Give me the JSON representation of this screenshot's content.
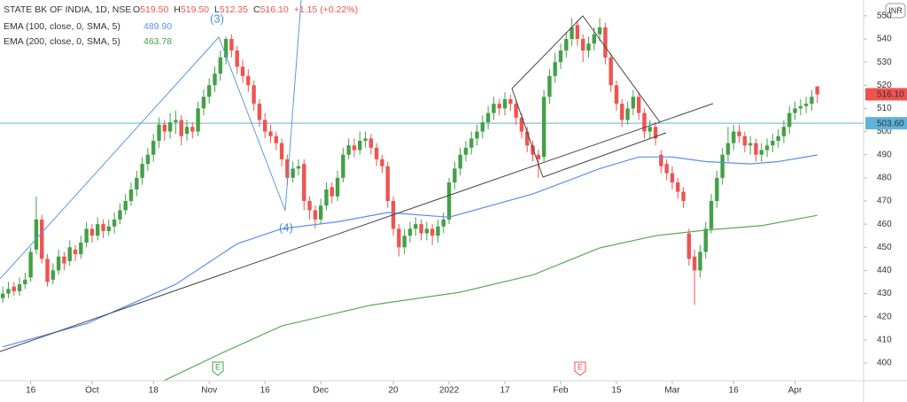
{
  "chart_data": {
    "type": "candlestick",
    "legend": {
      "symbol": "STATE BK OF INDIA, 1D, NSE",
      "ohlc": [
        {
          "key": "O",
          "value": "519.50"
        },
        {
          "key": "H",
          "value": "519.50"
        },
        {
          "key": "L",
          "value": "512.35"
        },
        {
          "key": "C",
          "value": "516.10"
        }
      ],
      "change": "+1.15 (+0.22%)"
    },
    "open": [
      428,
      430,
      433,
      431,
      434,
      437,
      449,
      462,
      445,
      436,
      440,
      446,
      444,
      449,
      447,
      452,
      458,
      455,
      460,
      457,
      459,
      462,
      466,
      470,
      475,
      480,
      486,
      490,
      496,
      503,
      500,
      504,
      505,
      499,
      502,
      500,
      510,
      515,
      520,
      525,
      532,
      540,
      535,
      528,
      524,
      520,
      512,
      505,
      500,
      498,
      495,
      488,
      480,
      484,
      486,
      470,
      466,
      462,
      468,
      476,
      472,
      480,
      490,
      494,
      492,
      496,
      497,
      493,
      488,
      485,
      470,
      458,
      450,
      455,
      458,
      460,
      456,
      458,
      455,
      459,
      462,
      478,
      484,
      490,
      493,
      497,
      500,
      504,
      508,
      512,
      510,
      514,
      512,
      506,
      500,
      494,
      490,
      489,
      515,
      524,
      530,
      535,
      540,
      546,
      540,
      535,
      538,
      542,
      545,
      532,
      520,
      512,
      505,
      510,
      515,
      508,
      500,
      502,
      490,
      486,
      482,
      478,
      474,
      456,
      446,
      440,
      448,
      458,
      470,
      480,
      490,
      495,
      500,
      498,
      494,
      495,
      490,
      492,
      494,
      496,
      498,
      502,
      508,
      510,
      511,
      512,
      519.5
    ],
    "high": [
      433,
      435,
      435,
      437,
      439,
      450,
      472,
      464,
      447,
      443,
      449,
      448,
      453,
      451,
      455,
      461,
      460,
      463,
      462,
      462,
      465,
      469,
      473,
      478,
      483,
      489,
      493,
      499,
      506,
      505,
      508,
      509,
      507,
      505,
      504,
      513,
      518,
      523,
      528,
      535,
      541,
      542,
      537,
      531,
      527,
      522,
      514,
      508,
      503,
      500,
      497,
      490,
      487,
      488,
      488,
      472,
      468,
      471,
      478,
      478,
      483,
      493,
      497,
      497,
      500,
      500,
      499,
      495,
      490,
      487,
      472,
      460,
      458,
      461,
      463,
      462,
      461,
      460,
      462,
      465,
      480,
      487,
      493,
      496,
      500,
      503,
      507,
      511,
      515,
      514,
      517,
      516,
      514,
      508,
      502,
      496,
      492,
      518,
      527,
      534,
      538,
      543,
      549,
      548,
      542,
      541,
      545,
      549,
      547,
      534,
      522,
      514,
      513,
      518,
      517,
      510,
      505,
      504,
      492,
      488,
      485,
      480,
      476,
      458,
      449,
      451,
      461,
      473,
      483,
      493,
      502,
      503,
      503,
      500,
      498,
      497,
      495,
      497,
      499,
      501,
      505,
      511,
      513,
      514,
      515,
      518,
      519.5
    ],
    "low": [
      426,
      428,
      429,
      429,
      432,
      435,
      447,
      443,
      433,
      434,
      438,
      440,
      442,
      444,
      445,
      450,
      452,
      453,
      454,
      455,
      456,
      460,
      464,
      468,
      472,
      477,
      483,
      487,
      493,
      496,
      497,
      499,
      494,
      496,
      497,
      498,
      507,
      512,
      517,
      522,
      529,
      532,
      525,
      521,
      517,
      509,
      502,
      497,
      495,
      492,
      485,
      477,
      478,
      481,
      466,
      462,
      458,
      460,
      466,
      469,
      470,
      478,
      488,
      489,
      490,
      493,
      490,
      485,
      482,
      467,
      455,
      446,
      447,
      452,
      455,
      453,
      453,
      451,
      452,
      456,
      460,
      475,
      481,
      487,
      490,
      494,
      497,
      501,
      505,
      507,
      507,
      509,
      503,
      497,
      491,
      487,
      480,
      487,
      512,
      521,
      527,
      532,
      537,
      537,
      530,
      532,
      535,
      539,
      529,
      517,
      509,
      502,
      503,
      507,
      505,
      497,
      497,
      494,
      482,
      479,
      475,
      471,
      467,
      442,
      425,
      437,
      445,
      456,
      467,
      477,
      487,
      492,
      495,
      491,
      490,
      487,
      487,
      489,
      491,
      493,
      495,
      499,
      505,
      507,
      508,
      509,
      512.35
    ],
    "close": [
      430,
      432,
      431,
      434,
      436,
      448,
      462,
      445,
      435,
      440,
      446,
      443,
      450,
      447,
      452,
      458,
      455,
      460,
      457,
      459,
      462,
      466,
      470,
      475,
      480,
      486,
      490,
      496,
      503,
      500,
      504,
      505,
      498,
      502,
      500,
      510,
      515,
      520,
      525,
      532,
      540,
      535,
      528,
      524,
      520,
      512,
      505,
      500,
      498,
      495,
      488,
      480,
      484,
      485,
      470,
      466,
      462,
      468,
      475,
      472,
      480,
      490,
      494,
      492,
      496,
      497,
      493,
      488,
      485,
      470,
      458,
      450,
      455,
      458,
      460,
      456,
      458,
      455,
      459,
      462,
      478,
      484,
      490,
      493,
      497,
      500,
      504,
      508,
      512,
      510,
      514,
      512,
      506,
      500,
      494,
      490,
      488,
      515,
      524,
      530,
      535,
      540,
      545,
      540,
      535,
      538,
      542,
      545,
      532,
      520,
      512,
      505,
      510,
      515,
      508,
      500,
      502,
      497,
      485,
      482,
      478,
      474,
      470,
      445,
      440,
      448,
      458,
      470,
      480,
      490,
      495,
      500,
      498,
      494,
      495,
      490,
      492,
      494,
      496,
      498,
      502,
      508,
      510,
      511,
      512,
      515,
      516.1
    ],
    "up_color": "#43a047",
    "down_color": "#ef5350",
    "series": [
      {
        "name": "EMA (100, close, 0, SMA, 5)",
        "color": "#5b8def",
        "x": [
          0,
          15,
          31,
          42,
          50,
          60,
          69,
          80,
          95,
          107,
          114,
          120,
          126,
          134,
          139,
          146
        ],
        "values": [
          407,
          417,
          434,
          451.5,
          458,
          461,
          465,
          463,
          473,
          484,
          489,
          489,
          487,
          486,
          487,
          489.9
        ],
        "value_label": "489.90"
      },
      {
        "name": "EMA (200, close, 0, SMA, 5)",
        "color": "#5aa85a",
        "x": [
          29,
          39,
          50,
          66,
          82,
          95,
          107,
          117,
          126,
          136,
          146
        ],
        "values": [
          392.5,
          404,
          416,
          425,
          430.6,
          438,
          449.7,
          455,
          457.4,
          459.3,
          463.78
        ],
        "value_label": "463.78"
      }
    ],
    "price_line": {
      "value": 503.6,
      "label": "503.60",
      "color": "#5fb3d9"
    },
    "last_price": {
      "label": "516.10"
    },
    "currency": "INR",
    "annotations": [
      "(3)",
      "(4)"
    ],
    "events": [
      "E",
      "E"
    ],
    "xlim": [
      -0.5,
      154.3
    ],
    "xticks": [
      {
        "value": 5,
        "label": "16"
      },
      {
        "value": 16,
        "label": "Oct"
      },
      {
        "value": 27,
        "label": "18"
      },
      {
        "value": 37,
        "label": "Nov"
      },
      {
        "value": 47,
        "label": "16"
      },
      {
        "value": 57,
        "label": "Dec"
      },
      {
        "value": 70,
        "label": "20"
      },
      {
        "value": 80,
        "label": "2022"
      },
      {
        "value": 90,
        "label": "17"
      },
      {
        "value": 100,
        "label": "Feb"
      },
      {
        "value": 110,
        "label": "15"
      },
      {
        "value": 120,
        "label": "Mar"
      },
      {
        "value": 131,
        "label": "16"
      },
      {
        "value": 142,
        "label": "Apr"
      }
    ],
    "ylim": [
      392.33,
      556.83
    ],
    "yticks": [
      400,
      410,
      420,
      430,
      440,
      450,
      460,
      470,
      480,
      490,
      500,
      510,
      520,
      530,
      540,
      550
    ],
    "grid": false
  }
}
